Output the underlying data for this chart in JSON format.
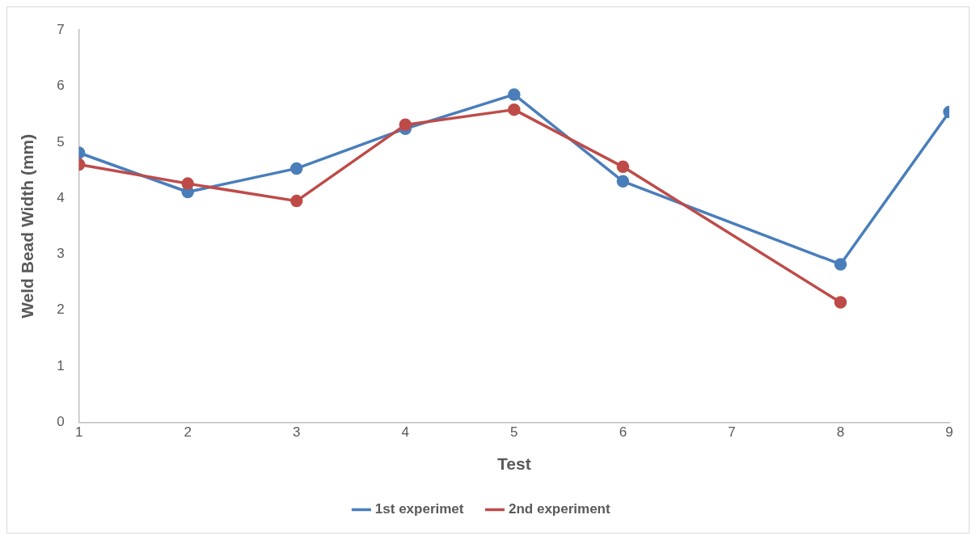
{
  "chart_data": {
    "type": "line",
    "xlabel": "Test",
    "ylabel": "Weld Bead Width (mm)",
    "xlim": [
      1,
      9
    ],
    "xticks": [
      1,
      2,
      3,
      4,
      5,
      6,
      7,
      8,
      9
    ],
    "ylim": [
      0,
      7
    ],
    "yticks": [
      0,
      1,
      2,
      3,
      4,
      5,
      6,
      7
    ],
    "grid": false,
    "legend": "bottom",
    "marker": "circle",
    "line_style": "solid",
    "series": [
      {
        "name": "1st experimet",
        "color": "#4a7ebb",
        "x": [
          1,
          2,
          3,
          4,
          5,
          6,
          8,
          9
        ],
        "values": [
          4.81,
          4.11,
          4.53,
          5.24,
          5.85,
          4.3,
          2.82,
          5.54
        ]
      },
      {
        "name": "2nd experiment",
        "color": "#be4b48",
        "x": [
          1,
          2,
          3,
          4,
          5,
          6,
          8
        ],
        "values": [
          4.6,
          4.26,
          3.95,
          5.31,
          5.58,
          4.56,
          2.14
        ]
      }
    ]
  }
}
